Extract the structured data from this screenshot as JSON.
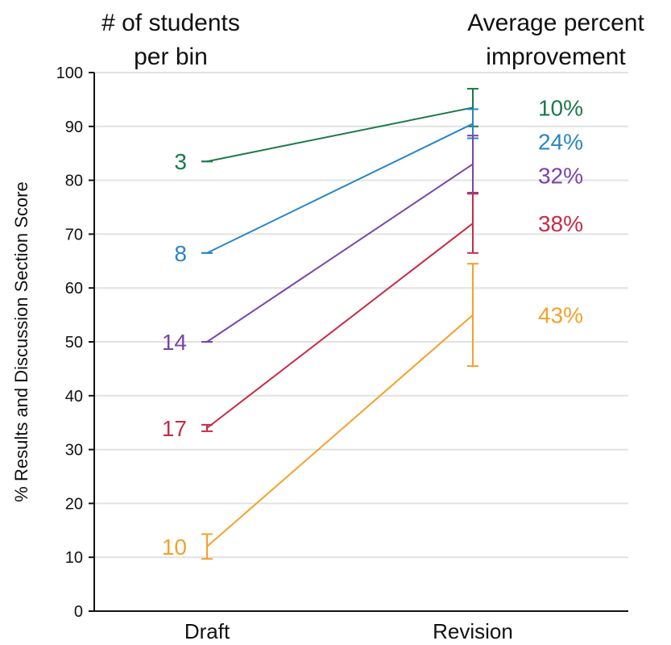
{
  "chart_data": {
    "type": "line",
    "title": "",
    "xlabel": "",
    "ylabel": "% Results and Discussion Section Score",
    "ylim": [
      0,
      100
    ],
    "yticks": [
      0,
      10,
      20,
      30,
      40,
      50,
      60,
      70,
      80,
      90,
      100
    ],
    "grid": true,
    "categories": [
      "Draft",
      "Revision"
    ],
    "header_left": [
      "# of students",
      "per bin"
    ],
    "header_right": [
      "Average percent",
      "improvement"
    ],
    "series": [
      {
        "color": "#1b7a4a",
        "count": "3",
        "improvement": "10%",
        "values": [
          83.5,
          93.5
        ],
        "errors": [
          0.0,
          3.5
        ]
      },
      {
        "color": "#2a86c6",
        "count": "8",
        "improvement": "24%",
        "values": [
          66.5,
          90.5
        ],
        "errors": [
          0.0,
          2.7
        ]
      },
      {
        "color": "#7a45a8",
        "count": "14",
        "improvement": "32%",
        "values": [
          50.0,
          83.0
        ],
        "errors": [
          0.0,
          5.3
        ]
      },
      {
        "color": "#c62c45",
        "count": "17",
        "improvement": "38%",
        "values": [
          34.0,
          72.0
        ],
        "errors": [
          0.6,
          5.5
        ]
      },
      {
        "color": "#f3a12d",
        "count": "10",
        "improvement": "43%",
        "values": [
          12.0,
          55.0
        ],
        "errors": [
          2.3,
          9.5
        ]
      }
    ]
  }
}
